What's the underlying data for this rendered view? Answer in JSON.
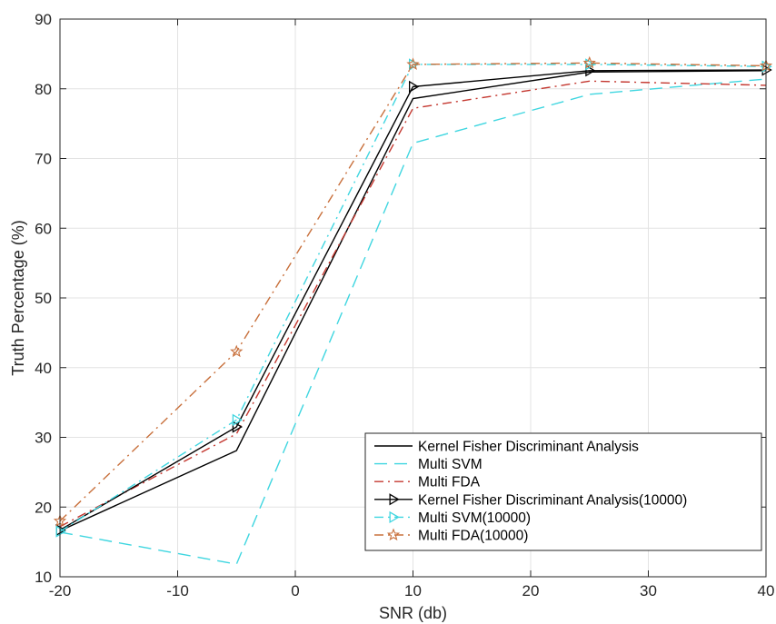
{
  "chart_data": {
    "type": "line",
    "title": "",
    "xlabel": "SNR (db)",
    "ylabel": "Truth Percentage (%)",
    "xlim": [
      -20,
      40
    ],
    "ylim": [
      10,
      90
    ],
    "xticks": [
      -20,
      -10,
      0,
      10,
      20,
      30,
      40
    ],
    "yticks": [
      10,
      20,
      30,
      40,
      50,
      60,
      70,
      80,
      90
    ],
    "grid": true,
    "legend_position": "bottom-right",
    "x": [
      -20,
      -5,
      10,
      25,
      40
    ],
    "series": [
      {
        "name": "Kernel Fisher Discriminant Analysis",
        "values": [
          16.6,
          28.1,
          78.6,
          82.4,
          82.6
        ],
        "color": "#000000",
        "dash": "solid",
        "marker": "none"
      },
      {
        "name": "Multi SVM",
        "values": [
          16.4,
          11.8,
          72.2,
          79.2,
          81.4
        ],
        "color": "#3fd6e0",
        "dash": "dashed",
        "marker": "none"
      },
      {
        "name": "Multi FDA",
        "values": [
          17.2,
          30.5,
          77.2,
          81.1,
          80.5
        ],
        "color": "#c4372f",
        "dash": "dashdot",
        "marker": "none"
      },
      {
        "name": "Kernel Fisher Discriminant Analysis(10000)",
        "values": [
          16.7,
          31.5,
          80.3,
          82.6,
          82.7
        ],
        "color": "#000000",
        "dash": "solid",
        "marker": "triangle-right"
      },
      {
        "name": "Multi SVM(10000)",
        "values": [
          16.5,
          32.5,
          83.5,
          83.5,
          83.2
        ],
        "color": "#3fd6e0",
        "dash": "dashdot",
        "marker": "triangle-right"
      },
      {
        "name": "Multi FDA(10000)",
        "values": [
          18.0,
          42.3,
          83.5,
          83.7,
          83.3
        ],
        "color": "#c8703c",
        "dash": "dashdot",
        "marker": "star"
      }
    ]
  }
}
